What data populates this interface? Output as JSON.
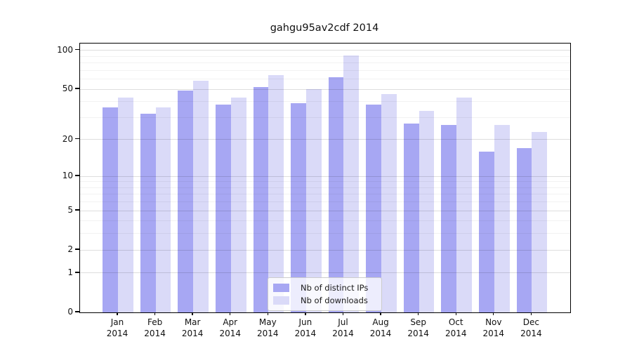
{
  "chart_data": {
    "type": "bar",
    "title": "gahgu95av2cdf 2014",
    "categories": [
      "Jan 2014",
      "Feb 2014",
      "Mar 2014",
      "Apr 2014",
      "May 2014",
      "Jun 2014",
      "Jul 2014",
      "Aug 2014",
      "Sep 2014",
      "Oct 2014",
      "Nov 2014",
      "Dec 2014"
    ],
    "series": [
      {
        "name": "Nb of distinct IPs",
        "color": "#a7a7f3",
        "values": [
          36,
          32,
          49,
          38,
          52,
          39,
          62,
          38,
          27,
          26,
          16,
          17
        ]
      },
      {
        "name": "Nb of downloads",
        "color": "#dadaf8",
        "values": [
          43,
          36,
          58,
          43,
          64,
          50,
          91,
          46,
          34,
          43,
          26,
          23
        ]
      }
    ],
    "xlabel": "",
    "ylabel": "",
    "yscale": "log(value+1)",
    "ylim": [
      0,
      113
    ],
    "y_ticks": [
      100,
      50,
      20,
      10,
      5,
      2,
      1,
      0
    ],
    "y_minor_gridlines": [
      3,
      4,
      6,
      7,
      8,
      9,
      30,
      40,
      60,
      70,
      80,
      90
    ],
    "grid": true,
    "legend_position": "lower center"
  }
}
